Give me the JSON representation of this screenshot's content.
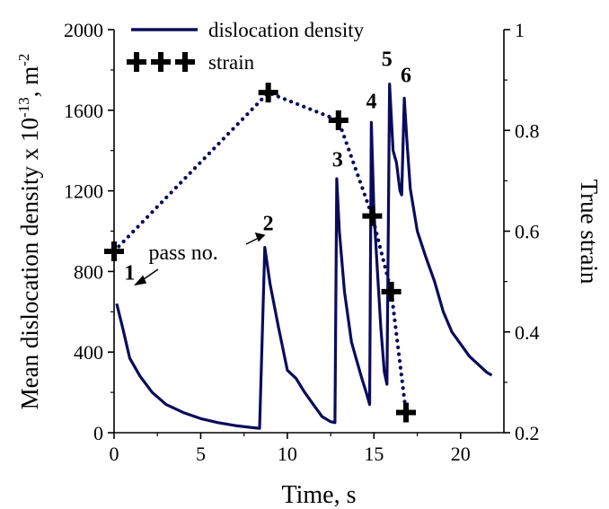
{
  "chart_data": {
    "type": "line",
    "x_axis": {
      "label": "Time, s",
      "range": [
        0,
        22.5
      ],
      "ticks": [
        0,
        5,
        10,
        15,
        20
      ],
      "tick_labels": [
        "0",
        "5",
        "10",
        "15",
        "20"
      ]
    },
    "y_axis_left": {
      "label": "Mean dislocation density x 10",
      "label_sup": "-13",
      "label_unit": ", m",
      "label_unit_sup": "-2",
      "range": [
        0,
        2000
      ],
      "ticks": [
        0,
        400,
        800,
        1200,
        1600,
        2000
      ],
      "tick_labels": [
        "0",
        "400",
        "800",
        "1200",
        "1600",
        "2000"
      ]
    },
    "y_axis_right": {
      "label": "True strain",
      "range": [
        0.2,
        1.0
      ],
      "ticks": [
        0.2,
        0.4,
        0.6,
        0.8,
        1.0
      ],
      "tick_labels": [
        "0.2",
        "0.4",
        "0.6",
        "0.8",
        "1"
      ]
    },
    "legend": {
      "placement": "top-left",
      "entries": [
        {
          "name": "dislocation density",
          "style": "solid-line"
        },
        {
          "name": "strain",
          "style": "cross-markers"
        }
      ]
    },
    "series": [
      {
        "name": "dislocation density",
        "axis": "left",
        "color": "#0b0b5c",
        "points": [
          [
            0.15,
            640
          ],
          [
            0.5,
            520
          ],
          [
            0.9,
            370
          ],
          [
            1.5,
            280
          ],
          [
            2.2,
            200
          ],
          [
            3.0,
            140
          ],
          [
            4.0,
            100
          ],
          [
            5.0,
            70
          ],
          [
            6.0,
            50
          ],
          [
            7.0,
            35
          ],
          [
            8.0,
            25
          ],
          [
            8.4,
            22
          ],
          [
            8.7,
            920
          ],
          [
            9.0,
            740
          ],
          [
            9.5,
            520
          ],
          [
            10.0,
            310
          ],
          [
            10.5,
            270
          ],
          [
            11.0,
            200
          ],
          [
            11.5,
            140
          ],
          [
            12.0,
            80
          ],
          [
            12.5,
            55
          ],
          [
            12.75,
            50
          ],
          [
            12.85,
            1260
          ],
          [
            13.0,
            1000
          ],
          [
            13.3,
            700
          ],
          [
            13.7,
            450
          ],
          [
            14.0,
            360
          ],
          [
            14.3,
            270
          ],
          [
            14.55,
            200
          ],
          [
            14.75,
            140
          ],
          [
            14.85,
            1540
          ],
          [
            15.0,
            1100
          ],
          [
            15.2,
            800
          ],
          [
            15.4,
            520
          ],
          [
            15.6,
            300
          ],
          [
            15.75,
            240
          ],
          [
            15.9,
            1730
          ],
          [
            16.1,
            1400
          ],
          [
            16.3,
            1340
          ],
          [
            16.5,
            1200
          ],
          [
            16.6,
            1180
          ],
          [
            16.75,
            1660
          ],
          [
            16.9,
            1450
          ],
          [
            17.1,
            1210
          ],
          [
            17.5,
            1000
          ],
          [
            18.0,
            870
          ],
          [
            18.5,
            750
          ],
          [
            19.0,
            600
          ],
          [
            19.5,
            500
          ],
          [
            20.0,
            440
          ],
          [
            20.5,
            380
          ],
          [
            21.0,
            340
          ],
          [
            21.5,
            300
          ],
          [
            21.8,
            285
          ]
        ]
      },
      {
        "name": "strain",
        "axis": "right",
        "color": "#0b0b5c",
        "points": [
          [
            0.0,
            0.56
          ],
          [
            8.9,
            0.875
          ],
          [
            12.95,
            0.82
          ],
          [
            14.9,
            0.63
          ],
          [
            16.0,
            0.48
          ],
          [
            16.85,
            0.24
          ]
        ]
      }
    ],
    "annotations": [
      {
        "text": "1",
        "x": 0.9,
        "y": 760,
        "kind": "pass-number"
      },
      {
        "text": "2",
        "x": 8.9,
        "y": 1005,
        "kind": "pass-number"
      },
      {
        "text": "3",
        "x": 12.9,
        "y": 1320,
        "kind": "pass-number"
      },
      {
        "text": "4",
        "x": 14.85,
        "y": 1610,
        "kind": "pass-number"
      },
      {
        "text": "5",
        "x": 15.75,
        "y": 1820,
        "kind": "pass-number"
      },
      {
        "text": "6",
        "x": 16.85,
        "y": 1740,
        "kind": "pass-number"
      },
      {
        "text": "pass no.",
        "x": 4.0,
        "y": 860,
        "kind": "label"
      }
    ]
  }
}
